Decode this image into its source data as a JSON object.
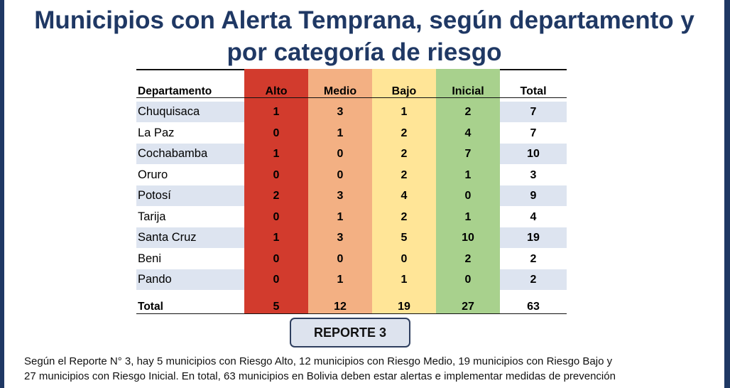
{
  "title": {
    "line1": "Municipios con Alerta Temprana, según departamento y",
    "line2": "por categoría de riesgo"
  },
  "table": {
    "headers": [
      "Departamento",
      "Alto",
      "Medio",
      "Bajo",
      "Inicial",
      "Total"
    ],
    "rows": [
      {
        "dept": "Chuquisaca",
        "alto": "1",
        "medio": "3",
        "bajo": "1",
        "inicial": "2",
        "total": "7"
      },
      {
        "dept": "La Paz",
        "alto": "0",
        "medio": "1",
        "bajo": "2",
        "inicial": "4",
        "total": "7"
      },
      {
        "dept": "Cochabamba",
        "alto": "1",
        "medio": "0",
        "bajo": "2",
        "inicial": "7",
        "total": "10"
      },
      {
        "dept": "Oruro",
        "alto": "0",
        "medio": "0",
        "bajo": "2",
        "inicial": "1",
        "total": "3"
      },
      {
        "dept": "Potosí",
        "alto": "2",
        "medio": "3",
        "bajo": "4",
        "inicial": "0",
        "total": "9"
      },
      {
        "dept": "Tarija",
        "alto": "0",
        "medio": "1",
        "bajo": "2",
        "inicial": "1",
        "total": "4"
      },
      {
        "dept": "Santa Cruz",
        "alto": "1",
        "medio": "3",
        "bajo": "5",
        "inicial": "10",
        "total": "19"
      },
      {
        "dept": "Beni",
        "alto": "0",
        "medio": "0",
        "bajo": "0",
        "inicial": "2",
        "total": "2"
      },
      {
        "dept": "Pando",
        "alto": "0",
        "medio": "1",
        "bajo": "1",
        "inicial": "0",
        "total": "2"
      }
    ],
    "total_row": {
      "dept": "Total",
      "alto": "5",
      "medio": "12",
      "bajo": "19",
      "inicial": "27",
      "total": "63"
    },
    "colors": {
      "alto": "#d23b2d",
      "medio": "#f3b083",
      "bajo": "#ffe597",
      "inicial": "#a8d18d",
      "row_stripe": "#dde4f0"
    }
  },
  "report_button": {
    "label": "REPORTE 3"
  },
  "footer": {
    "line1": "Según el Reporte N° 3, hay 5 municipios con Riesgo Alto, 12 municipios con Riesgo Medio, 19 municipios con Riesgo Bajo y",
    "line2": "27 municipios con Riesgo Inicial. En total, 63 municipios en Bolivia deben estar alertas e implementar medidas de prevención"
  }
}
